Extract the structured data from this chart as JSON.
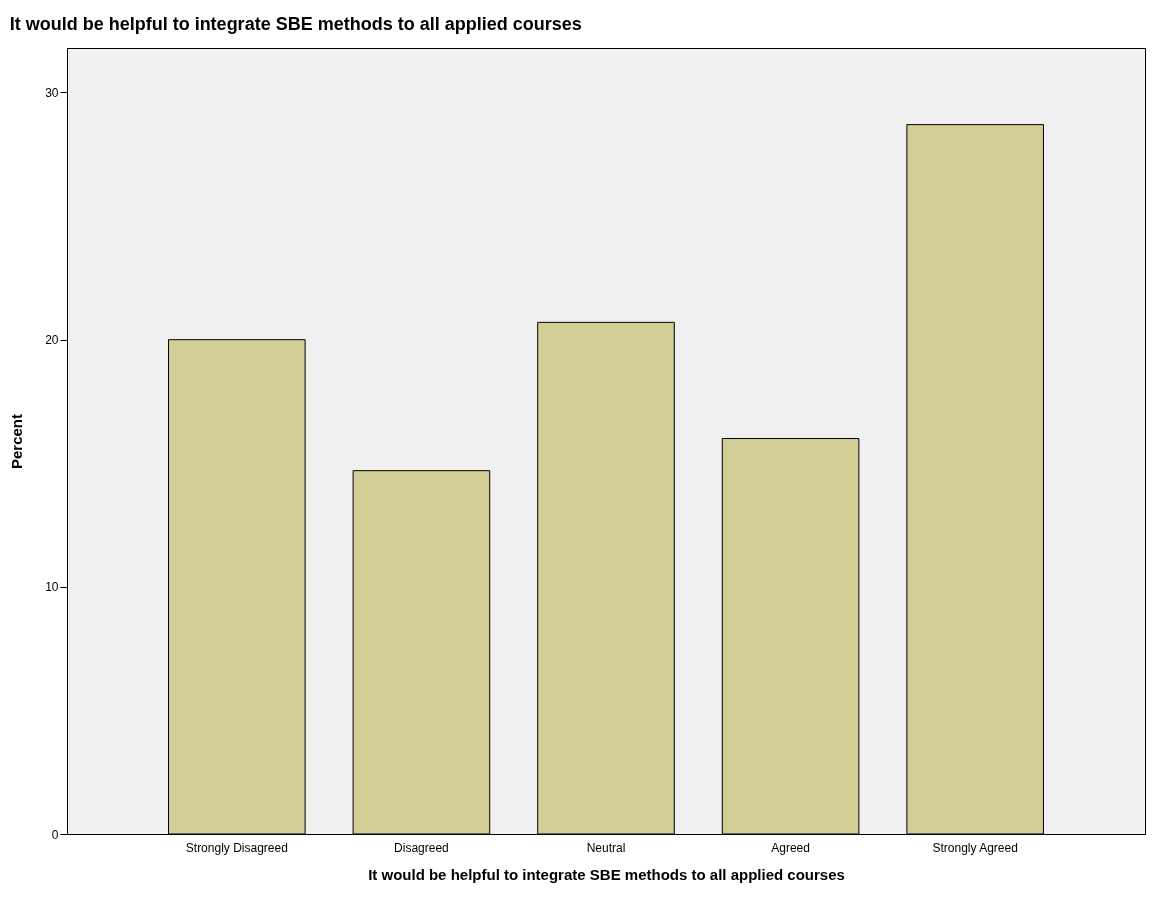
{
  "chart_data": {
    "type": "bar",
    "title": "It would be helpful to integrate SBE methods to all applied courses",
    "xlabel": "It would be helpful to integrate SBE methods to all applied courses",
    "ylabel": "Percent",
    "categories": [
      "Strongly Disagreed",
      "Disagreed",
      "Neutral",
      "Agreed",
      "Strongly Agreed"
    ],
    "values": [
      20.0,
      14.7,
      20.7,
      16.0,
      28.7
    ],
    "color": "#d3ce97",
    "ylim": [
      0,
      31.8
    ],
    "yticks": [
      0,
      10,
      20,
      30
    ],
    "grid": false
  }
}
